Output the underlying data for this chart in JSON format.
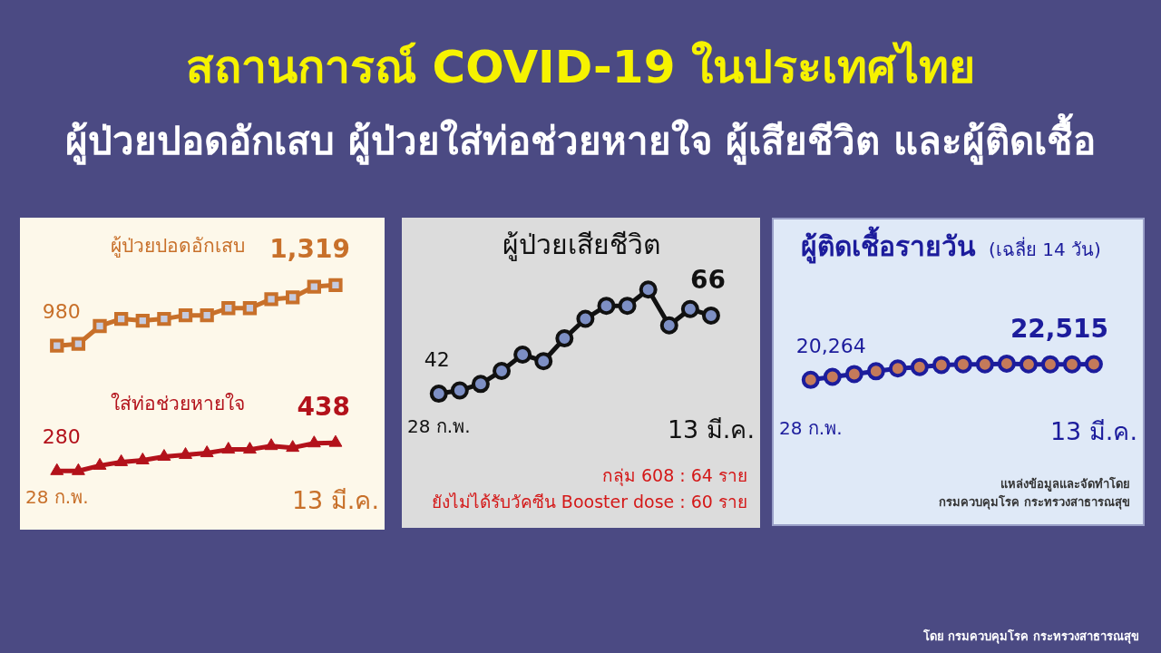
{
  "chart_data": [
    {
      "type": "other",
      "title": "สถานการณ์ COVID-19 ในประเทศไทย",
      "subtitle": "ผู้ป่วยปอดอักเสบ ผู้ป่วยใส่ท่อช่วยหายใจ ผู้เสียชีวิต และผู้ติดเชื้อ",
      "annotations": [
        "โดย กรมควบคุมโรค กระทรวงสาธารณสุข"
      ]
    },
    {
      "type": "line",
      "categories": [
        "28 ก.พ.",
        null,
        null,
        null,
        null,
        null,
        null,
        null,
        null,
        null,
        null,
        null,
        null,
        "13 มี.ค."
      ],
      "series": [
        {
          "name": "ผู้ป่วยปอดอักเสบ",
          "color": "#c8702a",
          "marker": "square",
          "values": [
            980,
            990,
            1090,
            1130,
            1120,
            1130,
            1150,
            1150,
            1190,
            1190,
            1240,
            1250,
            1310,
            1319
          ],
          "value_labels": [
            "980",
            null,
            null,
            null,
            null,
            null,
            null,
            null,
            null,
            null,
            null,
            null,
            null,
            "1,319"
          ]
        },
        {
          "name": "ใส่ท่อช่วยหายใจ",
          "color": "#b3121b",
          "marker": "triangle",
          "values": [
            280,
            280,
            310,
            330,
            340,
            360,
            370,
            380,
            400,
            400,
            420,
            410,
            435,
            438
          ],
          "value_labels": [
            "280",
            null,
            null,
            null,
            null,
            null,
            null,
            null,
            null,
            null,
            null,
            null,
            null,
            "438"
          ]
        }
      ],
      "tick_labels": "x"
    },
    {
      "type": "line",
      "title": "ผู้ป่วยเสียชีวิต",
      "categories": [
        "28 ก.พ.",
        null,
        null,
        null,
        null,
        null,
        null,
        null,
        null,
        null,
        null,
        null,
        null,
        "13 มี.ค."
      ],
      "series": [
        {
          "color": "#111111",
          "marker": "circle",
          "values": [
            42,
            43,
            45,
            49,
            54,
            52,
            59,
            65,
            69,
            69,
            74,
            63,
            68,
            66
          ],
          "value_labels": [
            "42",
            null,
            null,
            null,
            null,
            null,
            null,
            null,
            null,
            null,
            null,
            null,
            null,
            "66"
          ]
        }
      ],
      "annotations": [
        "กลุ่ม 608 : 64 ราย",
        "ยังไม่ได้รับวัคซีน Booster dose : 60 ราย"
      ],
      "tick_labels": "x"
    },
    {
      "type": "line",
      "title": "ผู้ติดเชื้อรายวัน",
      "subtitle": "(เฉลี่ย 14 วัน)",
      "categories": [
        "28 ก.พ.",
        null,
        null,
        null,
        null,
        null,
        null,
        null,
        null,
        null,
        null,
        null,
        null,
        "13 มี.ค."
      ],
      "series": [
        {
          "color": "#1c1c9c",
          "marker": "circle",
          "values": [
            20264,
            20700,
            21100,
            21500,
            21900,
            22100,
            22400,
            22500,
            22500,
            22600,
            22500,
            22500,
            22500,
            22515
          ],
          "value_labels": [
            "20,264",
            null,
            null,
            null,
            null,
            null,
            null,
            null,
            null,
            null,
            null,
            null,
            null,
            "22,515"
          ]
        }
      ],
      "annotations": [
        "แหล่งข้อมูลและจัดทำโดย",
        "กรมควบคุมโรค กระทรวงสาธารณสุข"
      ],
      "tick_labels": "x"
    }
  ]
}
